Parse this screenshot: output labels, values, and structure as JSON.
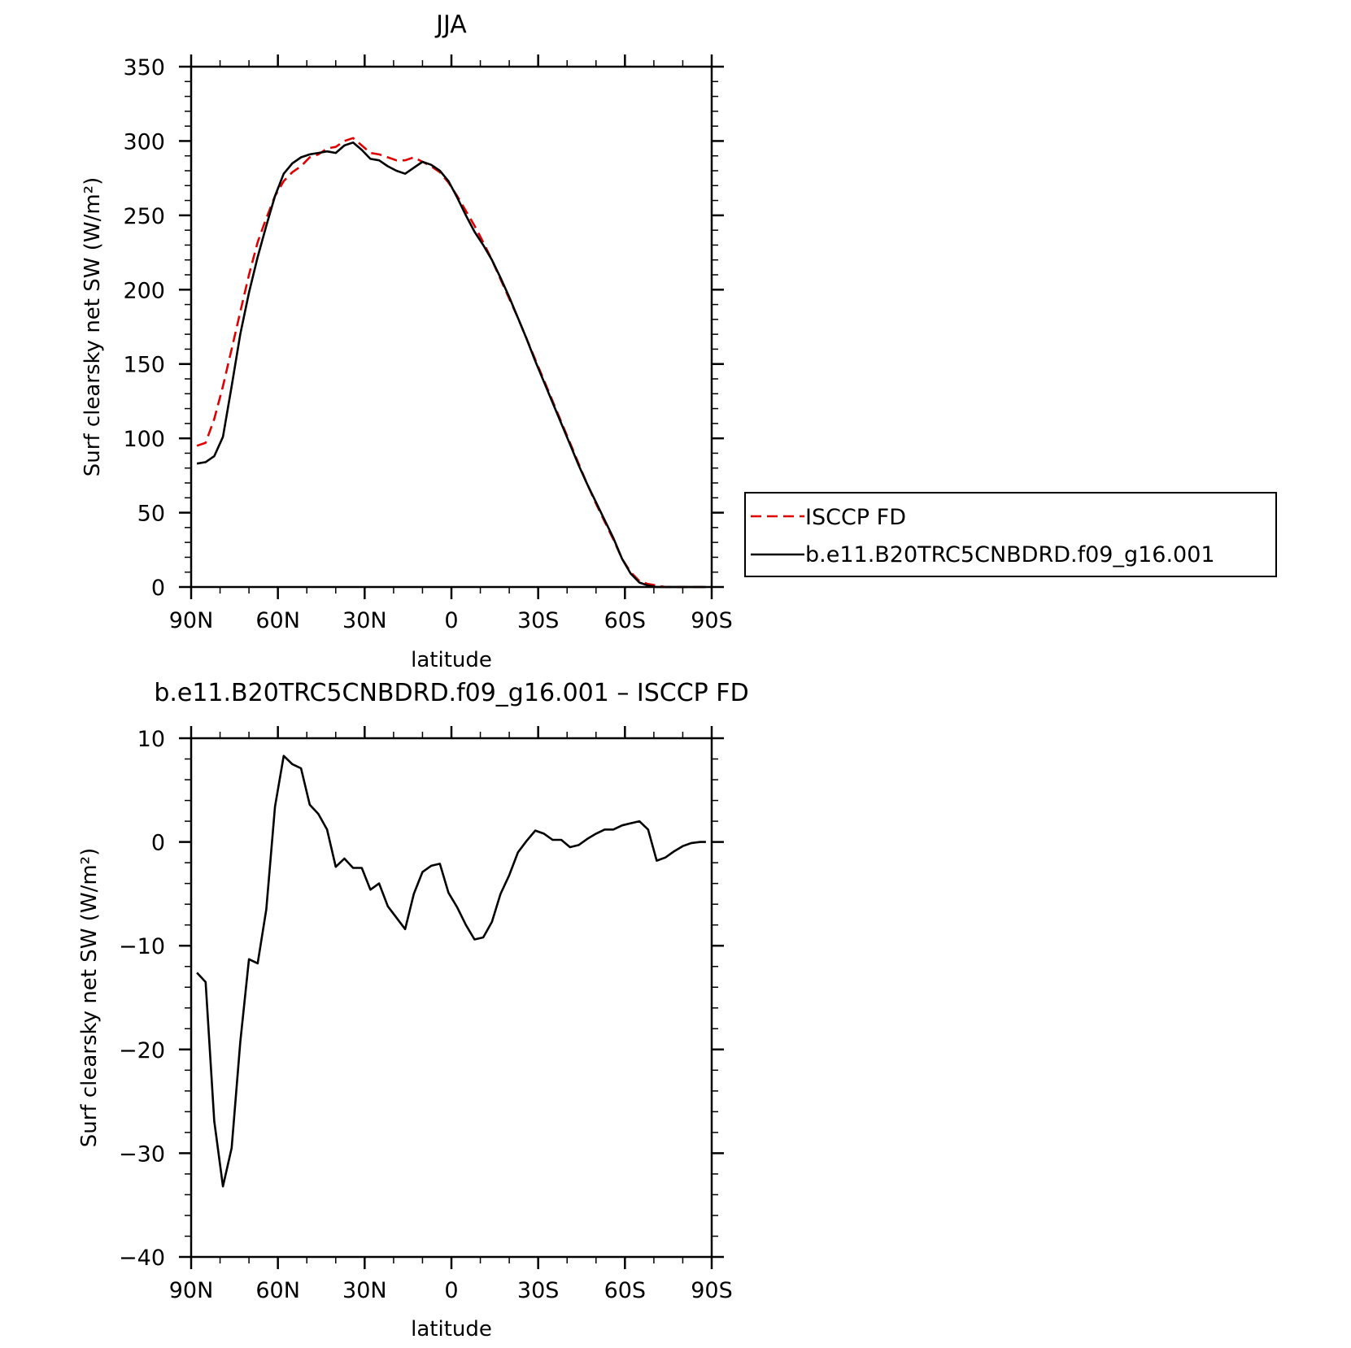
{
  "chart_data": [
    {
      "type": "line",
      "title": "JJA",
      "xlabel": "latitude",
      "ylabel": "Surf clearsky net SW (W/m²)",
      "xlim": [
        90,
        -90
      ],
      "ylim": [
        0,
        350
      ],
      "xticks": [
        90,
        60,
        30,
        0,
        -30,
        -60,
        -90
      ],
      "xtick_labels": [
        "90N",
        "60N",
        "30N",
        "0",
        "30S",
        "60S",
        "90S"
      ],
      "yticks": [
        0,
        50,
        100,
        150,
        200,
        250,
        300,
        350
      ],
      "ytick_labels": [
        "0",
        "50",
        "100",
        "150",
        "200",
        "250",
        "300",
        "350"
      ],
      "legend_position": "right",
      "series": [
        {
          "name": "ISCCP FD",
          "color": "#e00000",
          "dash": "dashed",
          "x": [
            88,
            85,
            82,
            79,
            76,
            73,
            70,
            67,
            64,
            61,
            58,
            55,
            52,
            49,
            46,
            43,
            40,
            37,
            34,
            31,
            28,
            25,
            22,
            19,
            16,
            13,
            10,
            7,
            4,
            1,
            -2,
            -5,
            -8,
            -11,
            -14,
            -17,
            -20,
            -23,
            -26,
            -29,
            -32,
            -35,
            -38,
            -41,
            -44,
            -47,
            -50,
            -53,
            -56,
            -59,
            -62,
            -65,
            -68,
            -71,
            -74,
            -77,
            -80,
            -83,
            -86,
            -88
          ],
          "y": [
            95,
            97,
            113,
            135,
            160,
            185,
            210,
            232,
            248,
            263,
            273,
            279,
            283,
            289,
            291,
            295,
            296,
            300,
            302,
            297,
            292,
            291,
            289,
            287,
            287,
            289,
            286,
            283,
            279,
            272,
            263,
            253,
            243,
            232,
            220,
            207,
            194,
            181,
            167,
            153,
            139,
            125,
            111,
            97,
            83,
            69,
            56,
            44,
            32,
            19,
            10,
            4,
            2,
            1,
            0,
            0,
            0,
            0,
            0,
            0
          ]
        },
        {
          "name": "b.e11.B20TRC5CNBDRD.f09_g16.001",
          "color": "#000000",
          "dash": "solid",
          "x": [
            88,
            85,
            82,
            79,
            76,
            73,
            70,
            67,
            64,
            61,
            58,
            55,
            52,
            49,
            46,
            43,
            40,
            37,
            34,
            31,
            28,
            25,
            22,
            19,
            16,
            13,
            10,
            7,
            4,
            1,
            -2,
            -5,
            -8,
            -11,
            -14,
            -17,
            -20,
            -23,
            -26,
            -29,
            -32,
            -35,
            -38,
            -41,
            -44,
            -47,
            -50,
            -53,
            -56,
            -59,
            -62,
            -65,
            -68,
            -71,
            -74,
            -77,
            -80,
            -83,
            -86,
            -88
          ],
          "y": [
            83,
            84,
            88,
            101,
            135,
            170,
            198,
            222,
            243,
            263,
            278,
            285,
            289,
            291,
            292,
            293,
            292,
            297,
            299,
            294,
            288,
            287,
            283,
            280,
            278,
            282,
            286,
            284,
            280,
            273,
            262,
            250,
            239,
            230,
            220,
            208,
            195,
            181,
            167,
            152,
            138,
            124,
            110,
            96,
            82,
            69,
            57,
            45,
            33,
            19,
            9,
            3,
            1,
            0,
            0,
            0,
            0,
            0,
            0,
            0
          ]
        }
      ]
    },
    {
      "type": "line",
      "title": "b.e11.B20TRC5CNBDRD.f09_g16.001 – ISCCP FD",
      "xlabel": "latitude",
      "ylabel": "Surf clearsky net SW (W/m²)",
      "xlim": [
        90,
        -90
      ],
      "ylim": [
        -40,
        10
      ],
      "xticks": [
        90,
        60,
        30,
        0,
        -30,
        -60,
        -90
      ],
      "xtick_labels": [
        "90N",
        "60N",
        "30N",
        "0",
        "30S",
        "60S",
        "90S"
      ],
      "yticks": [
        -40,
        -30,
        -20,
        -10,
        0,
        10
      ],
      "ytick_labels": [
        "−40",
        "−30",
        "−20",
        "−10",
        "0",
        "10"
      ],
      "series": [
        {
          "name": "",
          "color": "#000000",
          "dash": "solid",
          "x": [
            88,
            85,
            82,
            79,
            76,
            73,
            70,
            67,
            64,
            61,
            58,
            55,
            52,
            49,
            46,
            43,
            40,
            37,
            34,
            31,
            28,
            25,
            22,
            19,
            16,
            13,
            10,
            7,
            4,
            1,
            -2,
            -5,
            -8,
            -11,
            -14,
            -17,
            -20,
            -23,
            -26,
            -29,
            -32,
            -35,
            -38,
            -41,
            -44,
            -47,
            -50,
            -53,
            -56,
            -59,
            -62,
            -65,
            -68,
            -71,
            -74,
            -77,
            -80,
            -83,
            -86,
            -88
          ],
          "y": [
            -12.6,
            -13.5,
            -26.9,
            -33.2,
            -29.5,
            -19.3,
            -11.3,
            -11.7,
            -6.5,
            3.4,
            8.3,
            7.5,
            7.1,
            3.6,
            2.7,
            1.2,
            -2.4,
            -1.6,
            -2.5,
            -2.5,
            -4.6,
            -4.0,
            -6.2,
            -7.3,
            -8.4,
            -5.0,
            -2.9,
            -2.3,
            -2.1,
            -4.9,
            -6.3,
            -8.0,
            -9.4,
            -9.2,
            -7.7,
            -5.0,
            -3.2,
            -1.0,
            0.1,
            1.1,
            0.8,
            0.2,
            0.2,
            -0.5,
            -0.3,
            0.3,
            0.8,
            1.2,
            1.2,
            1.6,
            1.8,
            2.0,
            1.2,
            -1.8,
            -1.5,
            -0.9,
            -0.4,
            -0.1,
            0,
            0
          ]
        }
      ]
    }
  ]
}
